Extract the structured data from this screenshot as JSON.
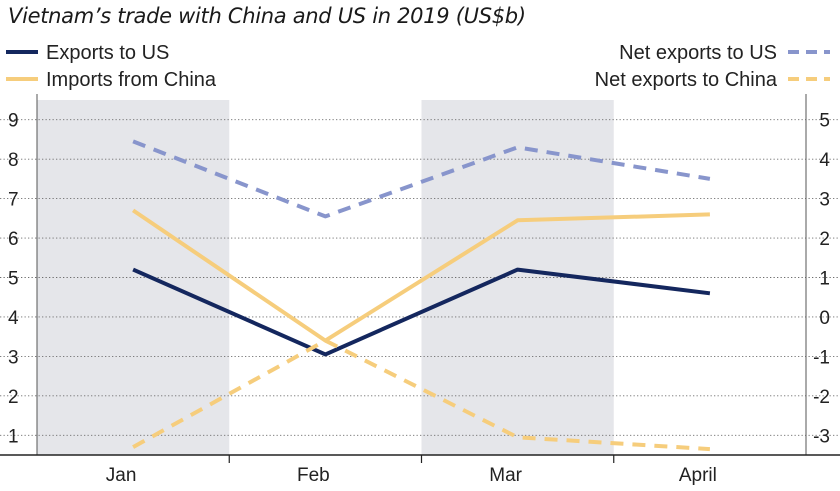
{
  "chart_data": {
    "type": "line",
    "title": "Vietnam’s trade with China and US in 2019 (US$b)",
    "categories": [
      "Jan",
      "Feb",
      "Mar",
      "April"
    ],
    "left_axis": {
      "ticks": [
        "1",
        "2",
        "3",
        "4",
        "5",
        "6",
        "7",
        "8",
        "9"
      ],
      "ylim": [
        0.5,
        9.5
      ]
    },
    "right_axis": {
      "ticks": [
        "-3",
        "-2",
        "-1",
        "0",
        "1",
        "2",
        "3",
        "4",
        "5"
      ],
      "ylim": [
        -3.5,
        5.5
      ]
    },
    "shaded_bands": [
      "Jan",
      "Mar"
    ],
    "series": [
      {
        "name": "Exports to US",
        "axis": "left",
        "style": "solid",
        "color": "#14275e",
        "values": [
          5.2,
          3.05,
          5.2,
          4.6
        ]
      },
      {
        "name": "Imports from China",
        "axis": "left",
        "style": "solid",
        "color": "#f6cd7c",
        "values": [
          6.7,
          3.4,
          6.45,
          6.6
        ]
      },
      {
        "name": "Net exports to US",
        "axis": "right",
        "style": "dashed",
        "color": "#8895cc",
        "values": [
          4.45,
          2.55,
          4.3,
          3.5
        ]
      },
      {
        "name": "Net exports to China",
        "axis": "right",
        "style": "dashed",
        "color": "#f6cd7c",
        "values": [
          -3.3,
          -0.6,
          -3.05,
          -3.35
        ]
      }
    ],
    "legend": {
      "left": [
        "Exports to US",
        "Imports from China"
      ],
      "right": [
        "Net exports to US",
        "Net exports to China"
      ]
    }
  }
}
